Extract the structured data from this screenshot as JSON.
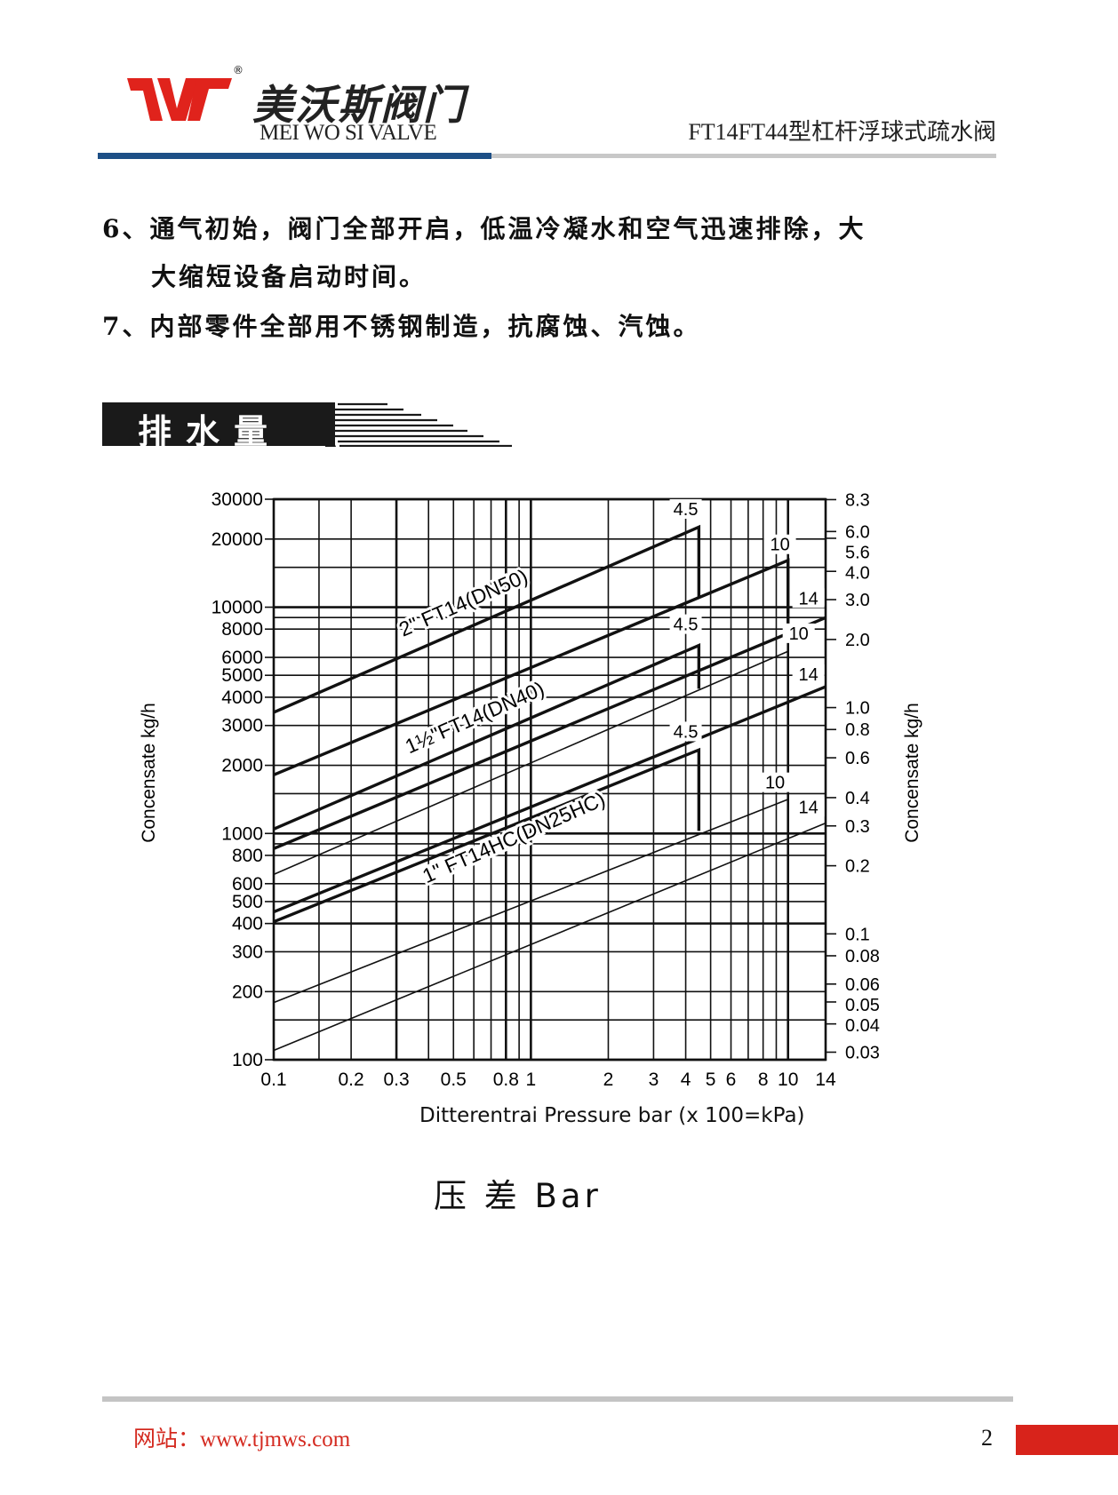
{
  "header": {
    "brand_cn": "美沃斯阀门",
    "brand_en": "MEI WO SI VALVE",
    "registered_mark": "®",
    "logo_letters": "MWS",
    "doc_title": "FT14FT44型杠杆浮球式疏水阀",
    "colors": {
      "logo": "#e0231c",
      "rule_primary": "#1d4f86",
      "rule_secondary": "#c8c8c8"
    }
  },
  "features": [
    {
      "line1": "6、通气初始，阀门全部开启，低温冷凝水和空气迅速排除，大",
      "line2": "大缩短设备启动时间。"
    },
    {
      "line1": "7、内部零件全部用不锈钢制造，抗腐蚀、汽蚀。"
    }
  ],
  "section": {
    "title": "排水量"
  },
  "chart_data": {
    "type": "line",
    "x_scale": "log",
    "y_scale": "log",
    "xlim": [
      0.1,
      14
    ],
    "ylim": [
      100,
      30000
    ],
    "xlabel": "Ditterentrai Pressure bar (x 100=kPa)",
    "ylabel_left": "Concensate  kg/h",
    "ylabel_right": "Concensate  kg/h",
    "grid": true,
    "x_ticks": [
      0.1,
      0.2,
      0.3,
      0.5,
      0.8,
      1,
      2,
      3,
      4,
      5,
      6,
      8,
      10,
      14
    ],
    "x_tick_labels": [
      "0.1",
      "0.2",
      "0.3",
      "0.5",
      "0.8",
      "1",
      "2",
      "3",
      "4",
      "5",
      "6",
      "8",
      "10",
      "14"
    ],
    "y_ticks": [
      30000,
      20000,
      10000,
      8000,
      6000,
      5000,
      4000,
      3000,
      2000,
      1000,
      800,
      600,
      500,
      400,
      300,
      200,
      100
    ],
    "y_tick_labels": [
      "30000",
      "20000",
      "10000",
      "8000",
      "6000",
      "5000",
      "4000",
      "3000",
      "2000",
      "1000",
      "800",
      "600",
      "500",
      "400",
      "300",
      "200",
      "100"
    ],
    "right_ticks": [
      "8.3",
      "6.0",
      "5.6",
      "4.0",
      "3.0",
      "2.0",
      "1.0",
      "0.8",
      "0.6",
      "0.4",
      "0.3",
      "0.2",
      "0.1",
      "0.08",
      "0.06",
      "0.05",
      "0.04",
      "0.03"
    ],
    "grid_x": [
      0.1,
      0.15,
      0.2,
      0.3,
      0.4,
      0.5,
      0.6,
      0.7,
      0.8,
      0.9,
      1,
      2,
      3,
      4,
      5,
      6,
      7,
      8,
      9,
      10,
      14
    ],
    "grid_y": [
      100,
      150,
      200,
      300,
      400,
      500,
      600,
      800,
      900,
      1000,
      1500,
      2000,
      3000,
      4000,
      5000,
      6000,
      8000,
      9000,
      10000,
      15000,
      20000,
      30000
    ],
    "groups": [
      {
        "name": "2\" FT14(DN50)",
        "label_at": [
          0.56,
          9800
        ],
        "series": [
          {
            "name": "4.5",
            "points": [
              [
                0.1,
                3430
              ],
              [
                4.5,
                22600
              ],
              [
                4.5,
                11000
              ]
            ],
            "label_at": [
              4.0,
              25500
            ],
            "thick": true
          },
          {
            "name": "10",
            "points": [
              [
                0.1,
                1815
              ],
              [
                10,
                16100
              ],
              [
                10,
                8130
              ]
            ],
            "label_at": [
              9.3,
              17800
            ],
            "thick": true
          },
          {
            "name": "14",
            "points": [
              [
                0.1,
                857
              ],
              [
                14,
                8990
              ]
            ],
            "label_at": [
              12.0,
              10300
            ],
            "thick": true
          }
        ]
      },
      {
        "name": "1½\"FT14(DN40)",
        "label_at": [
          0.62,
          3050
        ],
        "series": [
          {
            "name": "4.5",
            "points": [
              [
                0.1,
                1046
              ],
              [
                4.5,
                6780
              ],
              [
                4.5,
                4360
              ]
            ],
            "label_at": [
              4.0,
              7900
            ],
            "thick": true
          },
          {
            "name": "10",
            "points": [
              [
                0.1,
                659
              ],
              [
                10,
                6380
              ],
              [
                10,
                3870
              ]
            ],
            "label_at": [
              11.0,
              7200
            ],
            "thick": false
          },
          {
            "name": "14",
            "points": [
              [
                0.1,
                450
              ],
              [
                14,
                4450
              ]
            ],
            "label_at": [
              12.0,
              4750
            ],
            "thick": true
          }
        ]
      },
      {
        "name": "1\" FT14HC(DN25HC)",
        "label_at": [
          0.88,
          900
        ],
        "series": [
          {
            "name": "4.5",
            "points": [
              [
                0.1,
                407
              ],
              [
                4.5,
                2340
              ],
              [
                4.5,
                1027
              ]
            ],
            "label_at": [
              4.0,
              2650
            ],
            "thick": true
          },
          {
            "name": "10",
            "points": [
              [
                0.1,
                179
              ],
              [
                10,
                1415
              ]
            ],
            "label_at": [
              8.9,
              1580
            ],
            "thick": false
          },
          {
            "name": "14",
            "points": [
              [
                0.1,
                110
              ],
              [
                14,
                1111
              ]
            ],
            "label_at": [
              12.0,
              1230
            ],
            "thick": false
          }
        ]
      }
    ]
  },
  "caption": "压 差   Bar",
  "footer": {
    "website": "网站：www.tjmws.com",
    "page_number": "2",
    "accent": "#d8231b"
  }
}
